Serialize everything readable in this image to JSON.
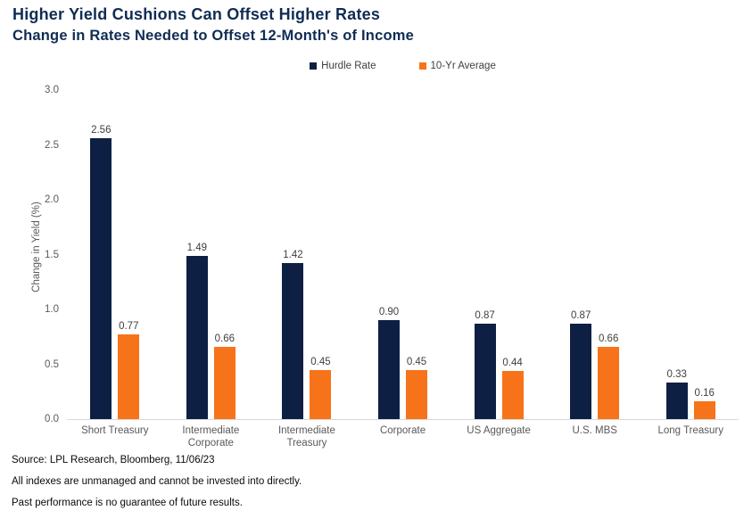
{
  "chart_data": {
    "type": "bar",
    "title": "Higher Yield Cushions Can Offset Higher Rates",
    "subtitle": "Change in Rates Needed to Offset 12-Month's of Income",
    "categories": [
      "Short Treasury",
      "Intermediate Corporate",
      "Intermediate Treasury",
      "Corporate",
      "US Aggregate",
      "U.S. MBS",
      "Long Treasury"
    ],
    "series": [
      {
        "name": "Hurdle Rate",
        "color": "#0e1f44",
        "values": [
          2.56,
          1.49,
          1.42,
          0.9,
          0.87,
          0.87,
          0.33
        ]
      },
      {
        "name": "10-Yr Average",
        "color": "#f7731a",
        "values": [
          0.77,
          0.66,
          0.45,
          0.45,
          0.44,
          0.66,
          0.16
        ]
      }
    ],
    "xlabel": "",
    "ylabel": "Change in Yield (%)",
    "ylim": [
      0,
      3.0
    ],
    "yticks": [
      "3.0",
      "2.5",
      "2.0",
      "1.5",
      "1.0",
      "0.5",
      "0.0"
    ],
    "grid": false,
    "legend_position": "top-center",
    "value_labels": true,
    "colors": {
      "title": "#102c54",
      "axis_line": "#d9d9d9",
      "tick_text": "#595959",
      "value_text": "#3f3f3f"
    }
  },
  "footer": {
    "source": "Source: LPL Research, Bloomberg, 11/06/23",
    "disclaimer1": "All indexes are unmanaged and cannot be invested into directly.",
    "disclaimer2": "Past performance is no guarantee of future results."
  }
}
